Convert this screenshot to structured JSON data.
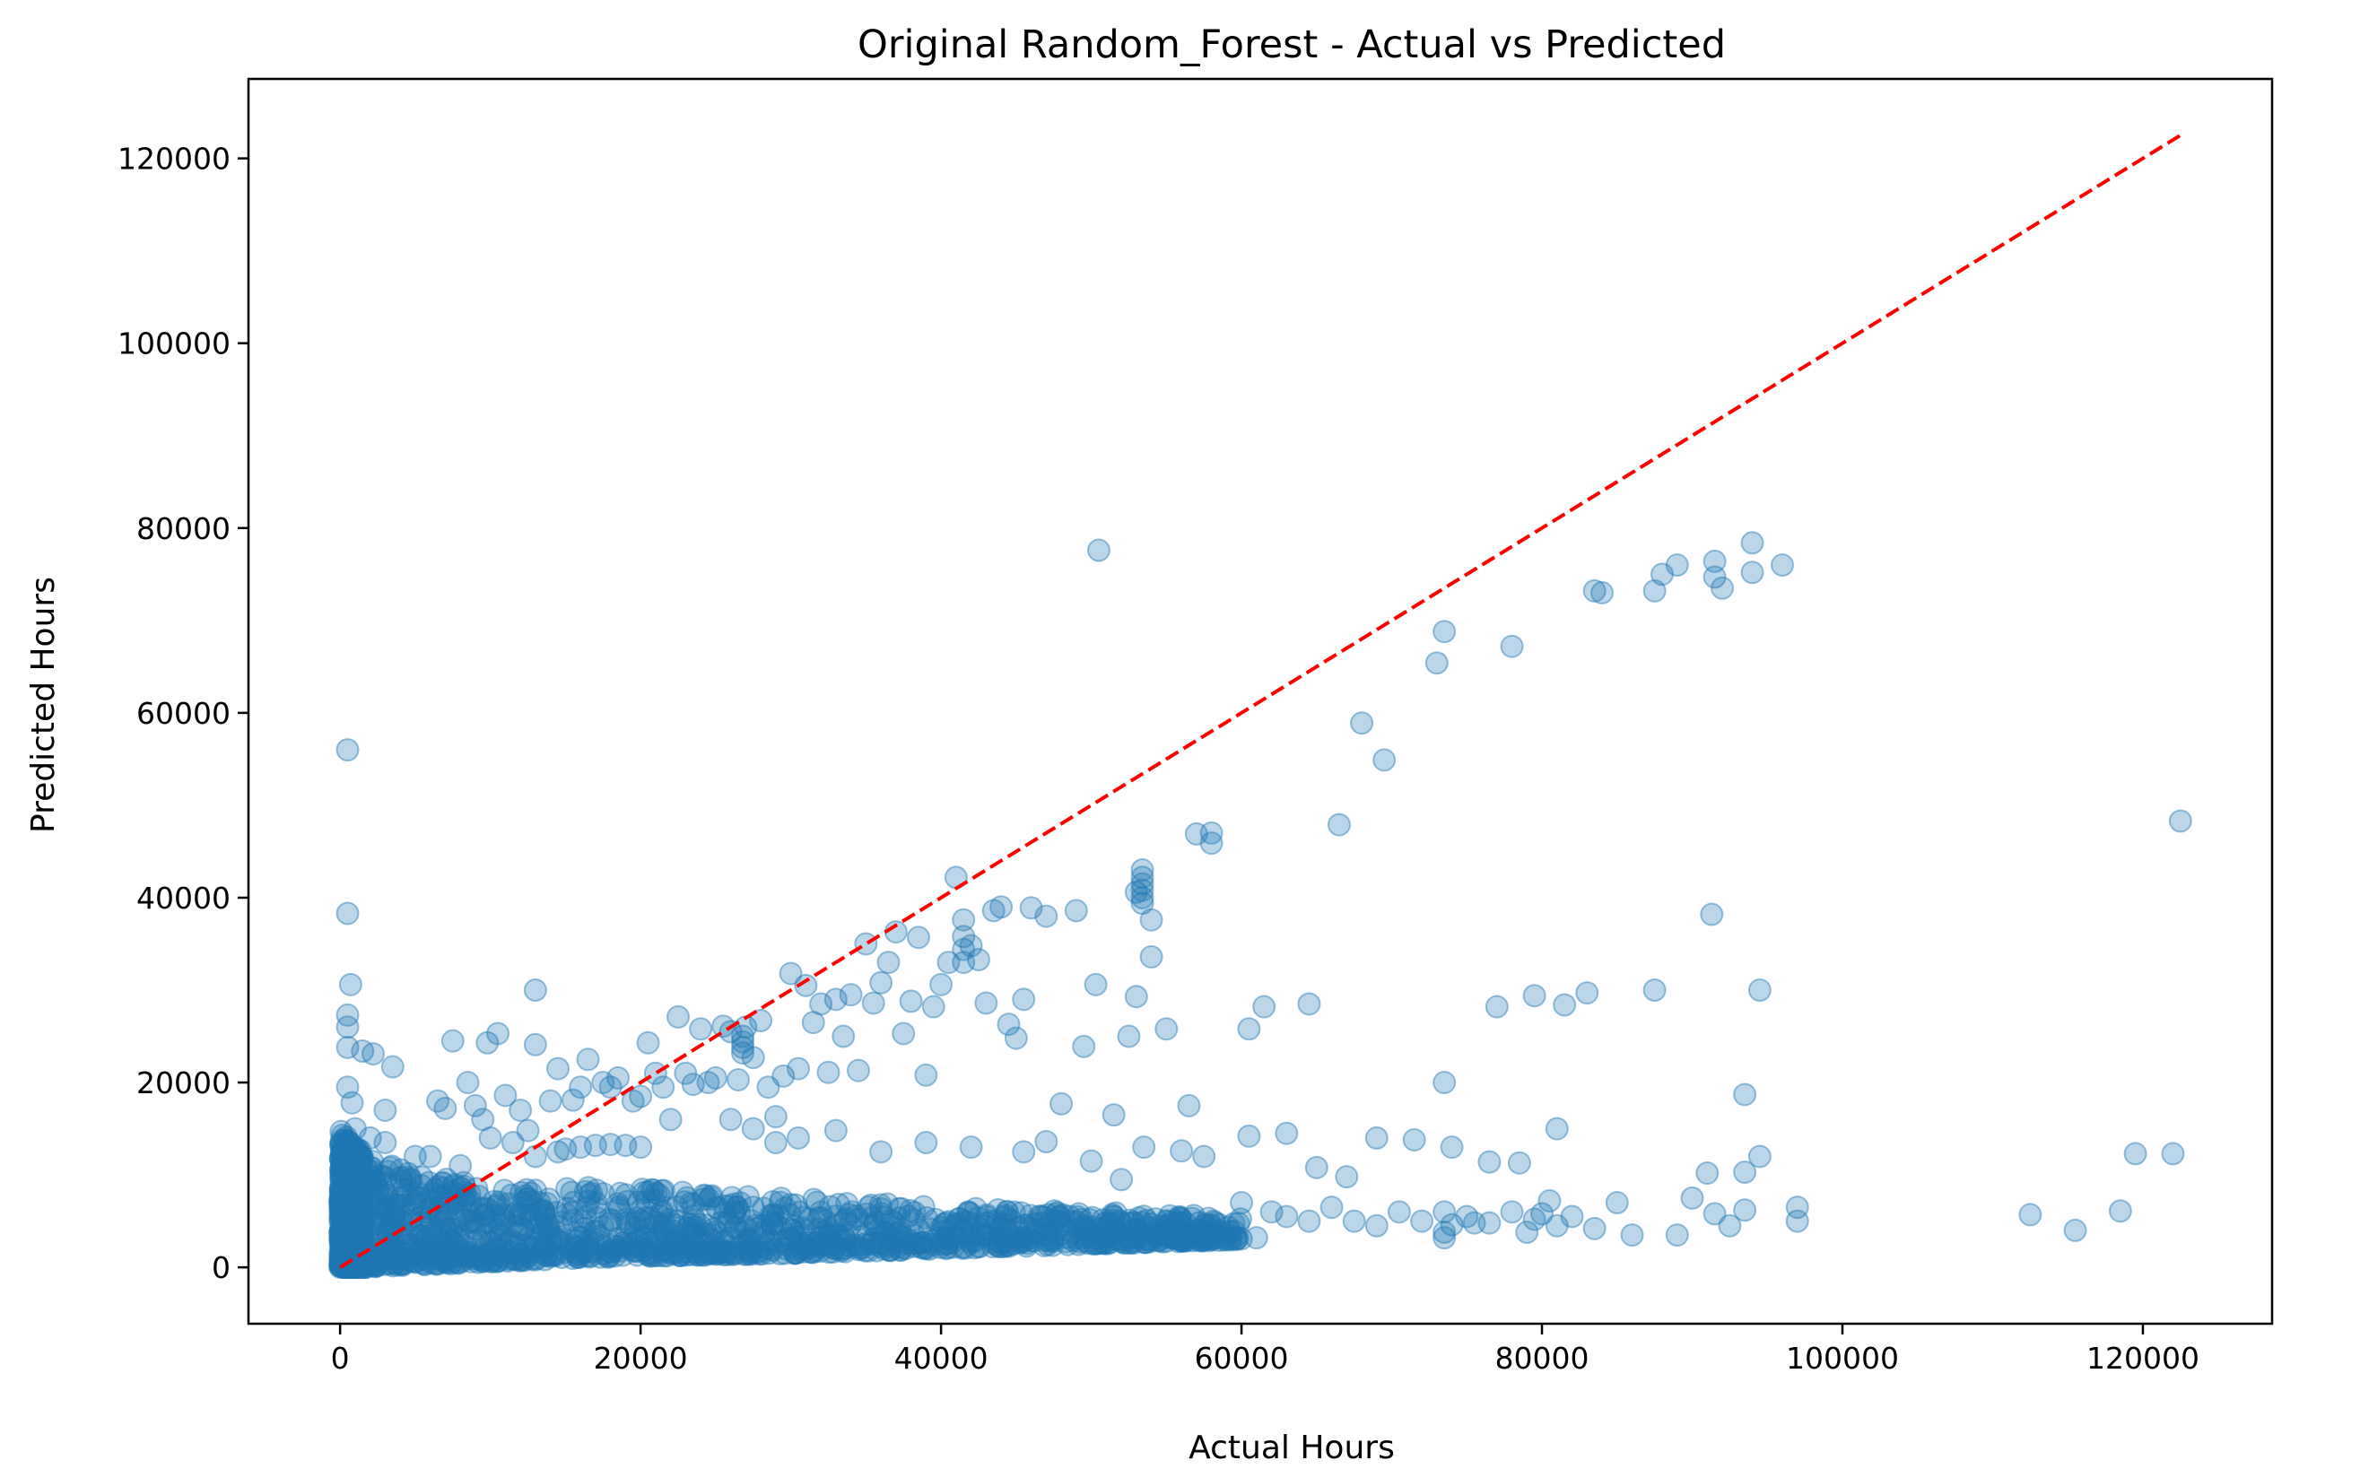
{
  "chart_data": {
    "type": "scatter",
    "title": "Original Random_Forest - Actual vs Predicted",
    "xlabel": "Actual Hours",
    "ylabel": "Predicted Hours",
    "xlim": [
      -6100,
      128600
    ],
    "ylim": [
      -6100,
      128600
    ],
    "xticks": [
      0,
      20000,
      40000,
      60000,
      80000,
      100000,
      120000
    ],
    "yticks": [
      0,
      20000,
      40000,
      60000,
      80000,
      100000,
      120000
    ],
    "xtick_labels": [
      "0",
      "20000",
      "40000",
      "60000",
      "80000",
      "100000",
      "120000"
    ],
    "ytick_labels": [
      "0",
      "20000",
      "40000",
      "60000",
      "80000",
      "100000",
      "120000"
    ],
    "grid": false,
    "reference_line": {
      "style": "dashed",
      "color": "#ff0000",
      "from": [
        0,
        0
      ],
      "to": [
        122500,
        122500
      ]
    },
    "marker_color": "#1f77b4",
    "marker_alpha": 0.3,
    "series": [
      {
        "points": [
          [
            500,
            56000
          ],
          [
            500,
            38300
          ],
          [
            700,
            30600
          ],
          [
            500,
            27300
          ],
          [
            500,
            26000
          ],
          [
            500,
            23800
          ],
          [
            1500,
            23400
          ],
          [
            2200,
            23100
          ],
          [
            500,
            19500
          ],
          [
            800,
            17800
          ],
          [
            3000,
            17000
          ],
          [
            3500,
            21700
          ],
          [
            1000,
            15000
          ],
          [
            2000,
            14000
          ],
          [
            3000,
            13500
          ],
          [
            5000,
            12000
          ],
          [
            6500,
            18000
          ],
          [
            7000,
            17200
          ],
          [
            7500,
            24500
          ],
          [
            8500,
            20000
          ],
          [
            9000,
            17500
          ],
          [
            9500,
            16000
          ],
          [
            9800,
            24300
          ],
          [
            10500,
            25300
          ],
          [
            11000,
            18600
          ],
          [
            12000,
            17000
          ],
          [
            13000,
            30000
          ],
          [
            13000,
            24100
          ],
          [
            14000,
            18000
          ],
          [
            14500,
            21500
          ],
          [
            15500,
            18100
          ],
          [
            16000,
            19500
          ],
          [
            16500,
            22500
          ],
          [
            17500,
            20000
          ],
          [
            18000,
            19500
          ],
          [
            18500,
            20500
          ],
          [
            19500,
            18000
          ],
          [
            20000,
            18500
          ],
          [
            20500,
            24300
          ],
          [
            21000,
            21000
          ],
          [
            21500,
            19500
          ],
          [
            22000,
            16000
          ],
          [
            22500,
            27100
          ],
          [
            23000,
            21000
          ],
          [
            23500,
            19800
          ],
          [
            24000,
            25800
          ],
          [
            24500,
            20000
          ],
          [
            25000,
            20500
          ],
          [
            25500,
            26100
          ],
          [
            26000,
            25500
          ],
          [
            26500,
            20300
          ],
          [
            27000,
            26000
          ],
          [
            27500,
            22700
          ],
          [
            28000,
            26700
          ],
          [
            28500,
            19500
          ],
          [
            29000,
            16300
          ],
          [
            29500,
            20700
          ],
          [
            30000,
            31800
          ],
          [
            30500,
            21500
          ],
          [
            31000,
            30500
          ],
          [
            31500,
            26500
          ],
          [
            32000,
            28500
          ],
          [
            32500,
            21100
          ],
          [
            33000,
            29000
          ],
          [
            33500,
            25000
          ],
          [
            34000,
            29500
          ],
          [
            34500,
            21300
          ],
          [
            35000,
            35000
          ],
          [
            35500,
            28600
          ],
          [
            36000,
            30800
          ],
          [
            36500,
            33000
          ],
          [
            37000,
            36300
          ],
          [
            37500,
            25300
          ],
          [
            38000,
            28800
          ],
          [
            38500,
            35700
          ],
          [
            39000,
            20800
          ],
          [
            39500,
            28200
          ],
          [
            40000,
            30600
          ],
          [
            40500,
            33000
          ],
          [
            41000,
            42200
          ],
          [
            41500,
            37600
          ],
          [
            42000,
            34800
          ],
          [
            42500,
            33300
          ],
          [
            43000,
            28600
          ],
          [
            43500,
            38600
          ],
          [
            44000,
            39000
          ],
          [
            44500,
            26300
          ],
          [
            45000,
            24800
          ],
          [
            45500,
            29000
          ],
          [
            46000,
            38900
          ],
          [
            47000,
            38000
          ],
          [
            48000,
            17700
          ],
          [
            49000,
            38600
          ],
          [
            49500,
            23900
          ],
          [
            50300,
            30600
          ],
          [
            50500,
            77600
          ],
          [
            51500,
            16500
          ],
          [
            52500,
            25000
          ],
          [
            53000,
            29300
          ],
          [
            53000,
            40600
          ],
          [
            53400,
            43000
          ],
          [
            53400,
            42200
          ],
          [
            53400,
            41500
          ],
          [
            53400,
            40800
          ],
          [
            53400,
            40000
          ],
          [
            53400,
            39400
          ],
          [
            54000,
            37600
          ],
          [
            54000,
            33600
          ],
          [
            55000,
            25800
          ],
          [
            56500,
            17500
          ],
          [
            57000,
            46900
          ],
          [
            58000,
            45900
          ],
          [
            58000,
            47000
          ],
          [
            60500,
            25800
          ],
          [
            61500,
            28200
          ],
          [
            64500,
            28500
          ],
          [
            66500,
            47900
          ],
          [
            68000,
            58900
          ],
          [
            69500,
            54900
          ],
          [
            73000,
            65400
          ],
          [
            73500,
            68800
          ],
          [
            73500,
            20000
          ],
          [
            77000,
            28200
          ],
          [
            78000,
            67200
          ],
          [
            79500,
            29400
          ],
          [
            81500,
            28400
          ],
          [
            83000,
            29700
          ],
          [
            83500,
            73200
          ],
          [
            84000,
            73000
          ],
          [
            87500,
            73200
          ],
          [
            88000,
            75000
          ],
          [
            89000,
            76000
          ],
          [
            87500,
            30000
          ],
          [
            91500,
            76400
          ],
          [
            91500,
            74700
          ],
          [
            92000,
            73500
          ],
          [
            91300,
            38200
          ],
          [
            93500,
            18700
          ],
          [
            94000,
            75200
          ],
          [
            94000,
            78400
          ],
          [
            94500,
            30000
          ],
          [
            96000,
            76000
          ],
          [
            26800,
            25000
          ],
          [
            26800,
            24400
          ],
          [
            26800,
            23800
          ],
          [
            26800,
            23200
          ],
          [
            41500,
            35800
          ],
          [
            41500,
            34400
          ],
          [
            41500,
            33000
          ],
          [
            26000,
            16000
          ],
          [
            27500,
            15000
          ],
          [
            29000,
            13500
          ],
          [
            30500,
            14000
          ],
          [
            33000,
            14800
          ],
          [
            36000,
            12500
          ],
          [
            39000,
            13500
          ],
          [
            42000,
            13000
          ],
          [
            45500,
            12500
          ],
          [
            47000,
            13600
          ],
          [
            50000,
            11500
          ],
          [
            52000,
            9500
          ],
          [
            53500,
            13000
          ],
          [
            56000,
            12600
          ],
          [
            57500,
            12000
          ],
          [
            60500,
            14200
          ],
          [
            63000,
            14500
          ],
          [
            65000,
            10800
          ],
          [
            67000,
            9800
          ],
          [
            69000,
            14000
          ],
          [
            71500,
            13800
          ],
          [
            74000,
            13000
          ],
          [
            76500,
            11400
          ],
          [
            78500,
            11300
          ],
          [
            81000,
            15000
          ],
          [
            93500,
            10300
          ],
          [
            94500,
            12000
          ],
          [
            91000,
            10200
          ],
          [
            13000,
            12000
          ],
          [
            14500,
            12500
          ],
          [
            16000,
            13000
          ],
          [
            17000,
            13200
          ],
          [
            18000,
            13300
          ],
          [
            19000,
            13200
          ],
          [
            20000,
            13000
          ],
          [
            15000,
            12800
          ],
          [
            10000,
            14000
          ],
          [
            11500,
            13500
          ],
          [
            12500,
            14800
          ],
          [
            6000,
            12000
          ],
          [
            8000,
            11000
          ],
          [
            60000,
            7000
          ],
          [
            62000,
            6000
          ],
          [
            63000,
            5500
          ],
          [
            64500,
            5000
          ],
          [
            66000,
            6500
          ],
          [
            67500,
            5000
          ],
          [
            69000,
            4500
          ],
          [
            70500,
            6000
          ],
          [
            72000,
            5000
          ],
          [
            73500,
            6000
          ],
          [
            75000,
            5500
          ],
          [
            76500,
            4800
          ],
          [
            78000,
            6000
          ],
          [
            79500,
            5200
          ],
          [
            81000,
            4500
          ],
          [
            82000,
            5500
          ],
          [
            83500,
            4200
          ],
          [
            85000,
            7000
          ],
          [
            86000,
            3500
          ],
          [
            89000,
            3500
          ],
          [
            90000,
            7500
          ],
          [
            91500,
            5800
          ],
          [
            92500,
            4500
          ],
          [
            93500,
            6200
          ],
          [
            97000,
            6500
          ],
          [
            97000,
            5000
          ],
          [
            112500,
            5700
          ],
          [
            115500,
            4000
          ],
          [
            118500,
            6100
          ],
          [
            119500,
            12300
          ],
          [
            122000,
            12300
          ],
          [
            122500,
            48300
          ],
          [
            73500,
            3200
          ],
          [
            73500,
            3800
          ],
          [
            74000,
            4600
          ],
          [
            75500,
            4800
          ],
          [
            79000,
            3800
          ],
          [
            80500,
            7200
          ],
          [
            80000,
            5800
          ],
          [
            58000,
            4000
          ],
          [
            56000,
            3000
          ],
          [
            55000,
            4500
          ],
          [
            61000,
            3200
          ]
        ],
        "dense_band": {
          "x_max": 60000,
          "y_ranges_at_x": [
            [
              0,
              0,
              15000
            ],
            [
              1000,
              0,
              13000
            ],
            [
              2000,
              0,
              12000
            ],
            [
              5000,
              200,
              10000
            ],
            [
              10000,
              600,
              9000
            ],
            [
              20000,
              1200,
              8500
            ],
            [
              30000,
              1500,
              7500
            ],
            [
              40000,
              2000,
              6500
            ],
            [
              50000,
              2500,
              6000
            ],
            [
              60000,
              3000,
              5500
            ]
          ]
        }
      }
    ]
  }
}
